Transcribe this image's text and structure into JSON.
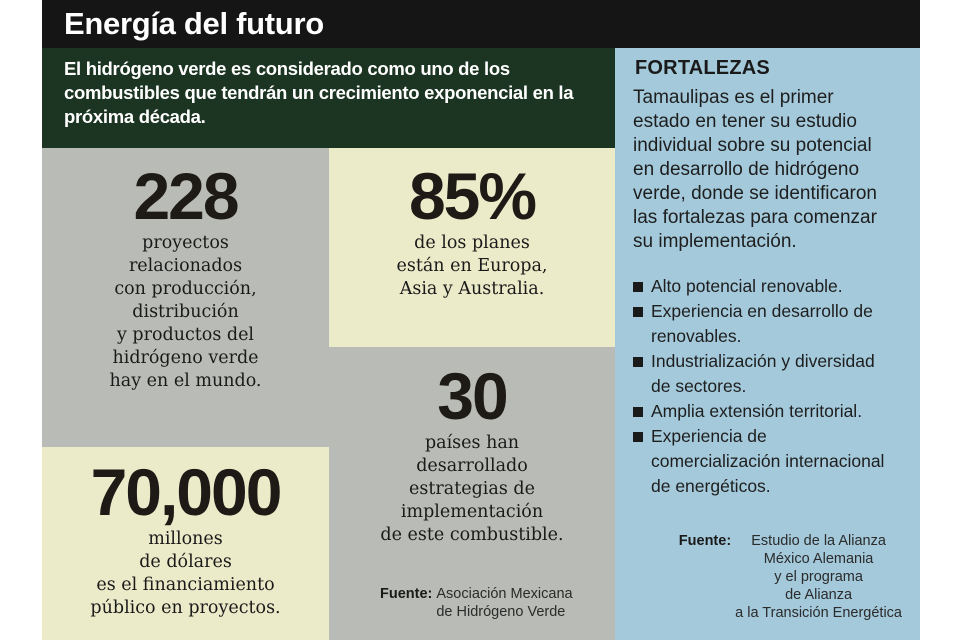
{
  "title": "Energía del futuro",
  "intro": "El hidrógeno verde es considerado como uno de los combustibles que tendrán un crecimiento exponencial en la próxima década.",
  "stats": [
    {
      "number": "228",
      "description": "proyectos\nrelacionados\ncon producción,\ndistribución\ny productos del\nhidrógeno verde\nhay en el mundo."
    },
    {
      "number": "85%",
      "description": "de los planes\nestán en Europa,\nAsia y Australia."
    },
    {
      "number": "30",
      "description": "países han\ndesarrollado\nestrategias de\nimplementación\nde este combustible."
    },
    {
      "number": "70,000",
      "description": "millones\nde dólares\nes el financiamiento\npúblico en proyectos."
    }
  ],
  "source_left": {
    "label": "Fuente:",
    "text": "Asociación Mexicana\nde Hidrógeno Verde"
  },
  "sidebar": {
    "heading": "FORTALEZAS",
    "body": "Tamaulipas es el primer\nestado en tener su estudio\nindividual sobre su potencial\nen desarrollo de hidrógeno\nverde, donde se identificaron\nlas fortalezas para comenzar\nsu implementación.",
    "bullets": [
      "Alto potencial renovable.",
      "Experiencia en desarrollo de\nrenovables.",
      "Industrialización y diversidad\nde sectores.",
      "Amplia extensión territorial.",
      "Experiencia de\ncomercialización internacional\nde energéticos."
    ],
    "source": {
      "label": "Fuente:",
      "text": "Estudio de la Alianza\nMéxico Alemania\ny el programa\nde Alianza\na la Transición Energética"
    }
  },
  "colors": {
    "title_bg": "#151515",
    "intro_bg": "#1c3422",
    "grey_panel": "#b9bcb6",
    "cream_panel": "#ecebc9",
    "sidebar_bg": "#a3c9db"
  }
}
